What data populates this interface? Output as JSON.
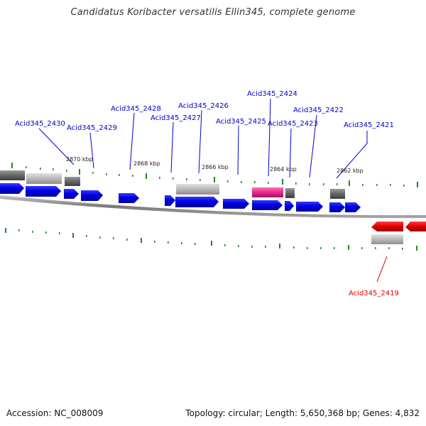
{
  "title": "Candidatus Koribacter versatilis Ellin345, complete genome",
  "footer": {
    "accession": "Accession: NC_008009",
    "topology": "Topology: circular; Length: 5,650,368 bp; Genes: 4,832"
  },
  "scale_labels": [
    "2870 kbp",
    "2868 kbp",
    "2866 kbp",
    "2864 kbp",
    "2862 kbp"
  ],
  "gene_labels": [
    {
      "text": "Acid345_2430",
      "color": "#0000cc"
    },
    {
      "text": "Acid345_2429",
      "color": "#0000cc"
    },
    {
      "text": "Acid345_2428",
      "color": "#0000cc"
    },
    {
      "text": "Acid345_2427",
      "color": "#0000cc"
    },
    {
      "text": "Acid345_2426",
      "color": "#0000cc"
    },
    {
      "text": "Acid345_2425",
      "color": "#0000cc"
    },
    {
      "text": "Acid345_2424",
      "color": "#0000cc"
    },
    {
      "text": "Acid345_2423",
      "color": "#0000cc"
    },
    {
      "text": "Acid345_2422",
      "color": "#0000cc"
    },
    {
      "text": "Acid345_2421",
      "color": "#0000cc"
    },
    {
      "text": "Acid345_2419",
      "color": "#dd0000"
    }
  ],
  "colors": {
    "forward_gene": "#0000e0",
    "reverse_gene": "#e00000",
    "highlight_feature": "#e0308f",
    "feature_dark": "#6a6a6a",
    "feature_light": "#b8b8b8",
    "backbone": "#888888",
    "tick": "#1f8a1f"
  }
}
